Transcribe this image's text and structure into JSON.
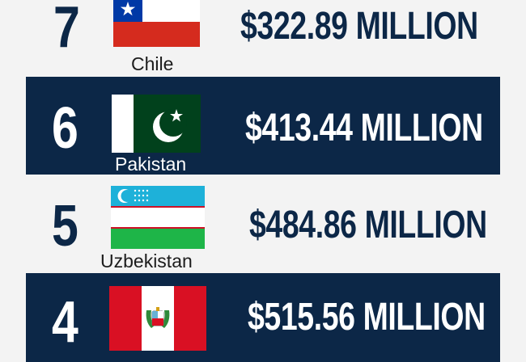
{
  "chart_data": {
    "type": "table",
    "items": [
      {
        "rank": "7",
        "country": "Chile",
        "value_label": "$322.89 MILLION",
        "value": 322.89,
        "flag_icon": "chile-flag-icon"
      },
      {
        "rank": "6",
        "country": "Pakistan",
        "value_label": "$413.44 MILLION",
        "value": 413.44,
        "flag_icon": "pakistan-flag-icon"
      },
      {
        "rank": "5",
        "country": "Uzbekistan",
        "value_label": "$484.86 MILLION",
        "value": 484.86,
        "flag_icon": "uzbekistan-flag-icon"
      },
      {
        "rank": "4",
        "country": "",
        "value_label": "$515.56 MILLION",
        "value": 515.56,
        "flag_icon": "peru-flag-icon"
      }
    ]
  },
  "colors": {
    "navy": "#0c2747",
    "light_background": "#f3f3f3",
    "text_light": "#ffffff"
  }
}
